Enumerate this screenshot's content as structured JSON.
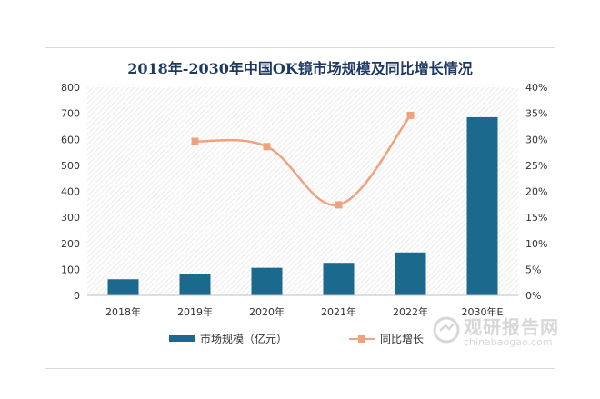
{
  "chart_data": {
    "type": "bar",
    "title": "2018年-2030年中国OK镜市场规模及同比增长情况",
    "categories": [
      "2018年",
      "2019年",
      "2020年",
      "2021年",
      "2022年",
      "2030年E"
    ],
    "series": [
      {
        "name": "市场规模（亿元）",
        "type": "bar",
        "axis": "left",
        "color": "#1b6a8e",
        "values": [
          62,
          82,
          106,
          125,
          165,
          685
        ]
      },
      {
        "name": "同比增长",
        "type": "line",
        "axis": "right",
        "color": "#f0a27e",
        "smooth": true,
        "values": [
          null,
          29.6,
          28.6,
          17.4,
          34.6,
          null
        ]
      }
    ],
    "left_axis": {
      "min": 0,
      "max": 800,
      "ticks": [
        "0",
        "100",
        "200",
        "300",
        "400",
        "500",
        "600",
        "700",
        "800"
      ]
    },
    "right_axis": {
      "min": 0,
      "max": 40,
      "ticks": [
        "0%",
        "5%",
        "10%",
        "15%",
        "20%",
        "25%",
        "30%",
        "35%",
        "40%"
      ]
    },
    "plot_background": "hatched",
    "legend_position": "bottom"
  },
  "watermark": {
    "name": "观研报告网",
    "url": "chinabaogao.com"
  }
}
